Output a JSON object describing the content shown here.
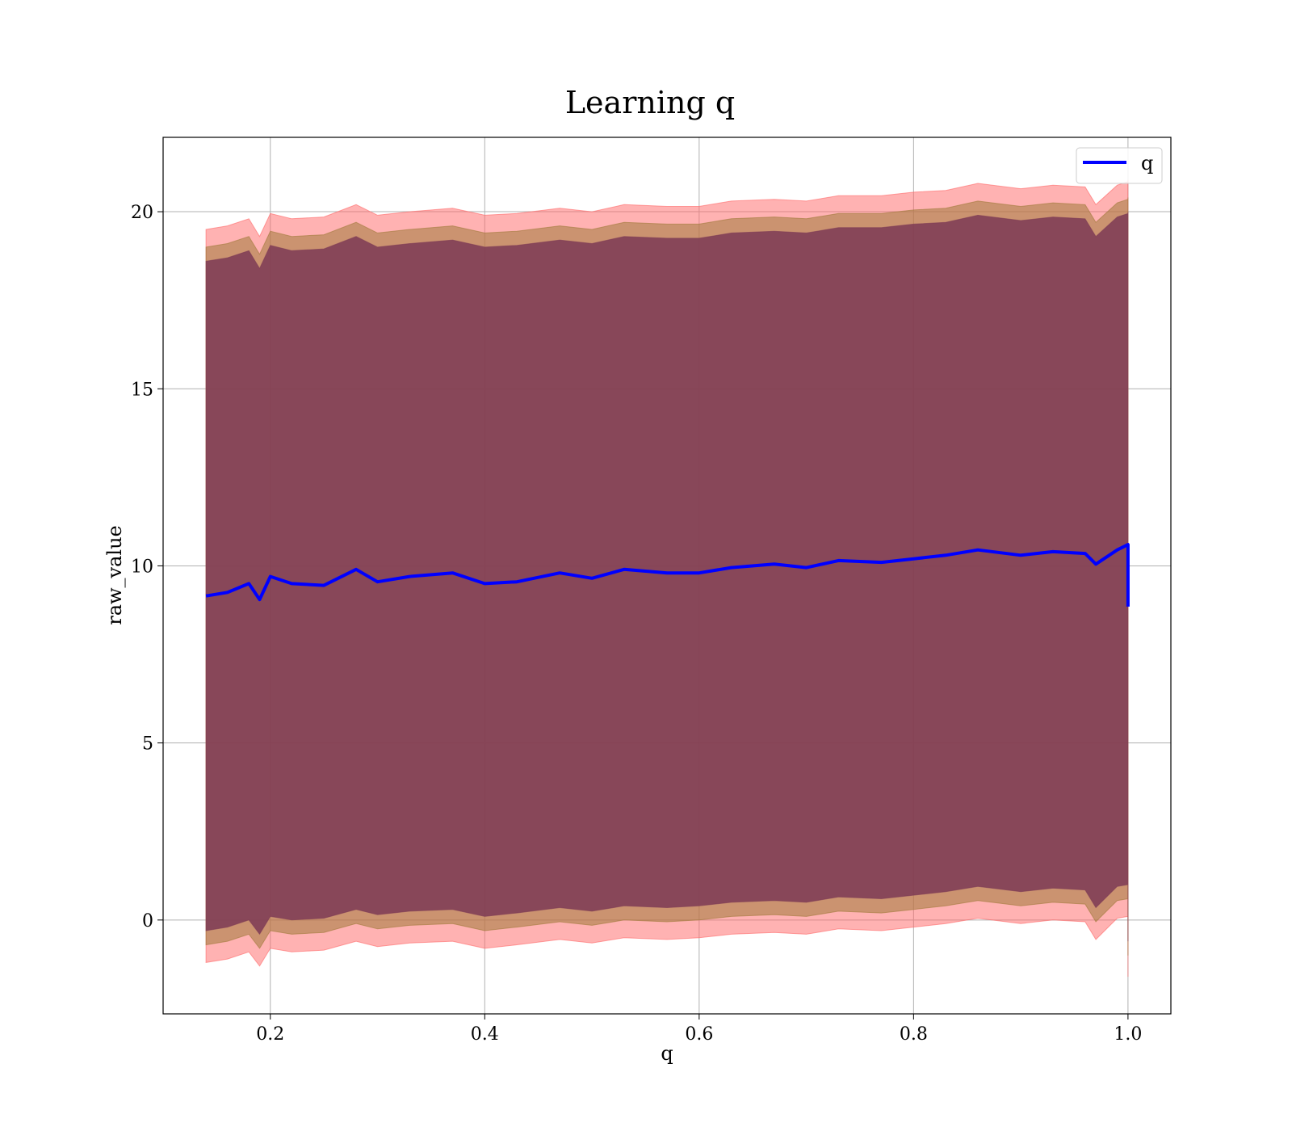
{
  "chart_data": {
    "type": "area",
    "title": "Learning q",
    "xlabel": "q",
    "ylabel": "raw_value",
    "xlim": [
      0.1,
      1.04
    ],
    "ylim": [
      -2.65,
      22.1
    ],
    "xticks": [
      "0.2",
      "0.4",
      "0.6",
      "0.8",
      "1.0"
    ],
    "yticks": [
      "0",
      "5",
      "10",
      "15",
      "20"
    ],
    "grid": true,
    "legend": {
      "placement": "top-right",
      "entries": [
        "q"
      ]
    },
    "colors": {
      "mean_line": "#0000ff",
      "outer_band": "#ff6666",
      "middle_band": "#a07a3a",
      "inner_band": "#7d3a55"
    },
    "x": [
      0.14,
      0.16,
      0.18,
      0.19,
      0.2,
      0.22,
      0.25,
      0.28,
      0.3,
      0.33,
      0.37,
      0.4,
      0.43,
      0.47,
      0.5,
      0.53,
      0.57,
      0.6,
      0.63,
      0.67,
      0.7,
      0.73,
      0.77,
      0.8,
      0.83,
      0.86,
      0.9,
      0.93,
      0.96,
      0.97,
      0.99,
      1.0,
      1.0
    ],
    "series": [
      {
        "name": "q",
        "values": [
          9.15,
          9.25,
          9.5,
          9.05,
          9.7,
          9.5,
          9.45,
          9.9,
          9.55,
          9.7,
          9.8,
          9.5,
          9.55,
          9.8,
          9.65,
          9.9,
          9.8,
          9.8,
          9.95,
          10.05,
          9.95,
          10.15,
          10.1,
          10.2,
          10.3,
          10.45,
          10.3,
          10.4,
          10.35,
          10.05,
          10.45,
          10.6,
          8.85
        ]
      }
    ],
    "bands": [
      {
        "lower": [
          -1.2,
          -1.1,
          -0.9,
          -1.3,
          -0.8,
          -0.9,
          -0.85,
          -0.6,
          -0.75,
          -0.65,
          -0.6,
          -0.8,
          -0.7,
          -0.55,
          -0.65,
          -0.5,
          -0.55,
          -0.5,
          -0.4,
          -0.35,
          -0.4,
          -0.25,
          -0.3,
          -0.2,
          -0.1,
          0.05,
          -0.1,
          0.0,
          -0.05,
          -0.55,
          0.05,
          0.1,
          -1.6
        ],
        "upper": [
          19.5,
          19.6,
          19.8,
          19.3,
          19.95,
          19.8,
          19.85,
          20.2,
          19.9,
          20.0,
          20.1,
          19.9,
          19.95,
          20.1,
          20.0,
          20.2,
          20.15,
          20.15,
          20.3,
          20.35,
          20.3,
          20.45,
          20.45,
          20.55,
          20.6,
          20.8,
          20.65,
          20.75,
          20.7,
          20.2,
          20.75,
          20.85,
          20.9
        ]
      },
      {
        "lower": [
          -0.7,
          -0.6,
          -0.4,
          -0.8,
          -0.3,
          -0.4,
          -0.35,
          -0.1,
          -0.25,
          -0.15,
          -0.1,
          -0.3,
          -0.2,
          -0.05,
          -0.15,
          0.0,
          -0.05,
          0.0,
          0.1,
          0.15,
          0.1,
          0.25,
          0.2,
          0.3,
          0.4,
          0.55,
          0.4,
          0.5,
          0.45,
          -0.05,
          0.55,
          0.6,
          -1.0
        ],
        "upper": [
          19.0,
          19.1,
          19.3,
          18.8,
          19.45,
          19.3,
          19.35,
          19.7,
          19.4,
          19.5,
          19.6,
          19.4,
          19.45,
          19.6,
          19.5,
          19.7,
          19.65,
          19.65,
          19.8,
          19.85,
          19.8,
          19.95,
          19.95,
          20.05,
          20.1,
          20.3,
          20.15,
          20.25,
          20.2,
          19.7,
          20.25,
          20.35,
          20.4
        ]
      },
      {
        "lower": [
          -0.3,
          -0.2,
          0.0,
          -0.4,
          0.1,
          0.0,
          0.05,
          0.3,
          0.15,
          0.25,
          0.3,
          0.1,
          0.2,
          0.35,
          0.25,
          0.4,
          0.35,
          0.4,
          0.5,
          0.55,
          0.5,
          0.65,
          0.6,
          0.7,
          0.8,
          0.95,
          0.8,
          0.9,
          0.85,
          0.35,
          0.95,
          1.0,
          -0.6
        ],
        "upper": [
          18.6,
          18.7,
          18.9,
          18.4,
          19.05,
          18.9,
          18.95,
          19.3,
          19.0,
          19.1,
          19.2,
          19.0,
          19.05,
          19.2,
          19.1,
          19.3,
          19.25,
          19.25,
          19.4,
          19.45,
          19.4,
          19.55,
          19.55,
          19.65,
          19.7,
          19.9,
          19.75,
          19.85,
          19.8,
          19.3,
          19.85,
          19.95,
          20.0
        ]
      }
    ]
  }
}
